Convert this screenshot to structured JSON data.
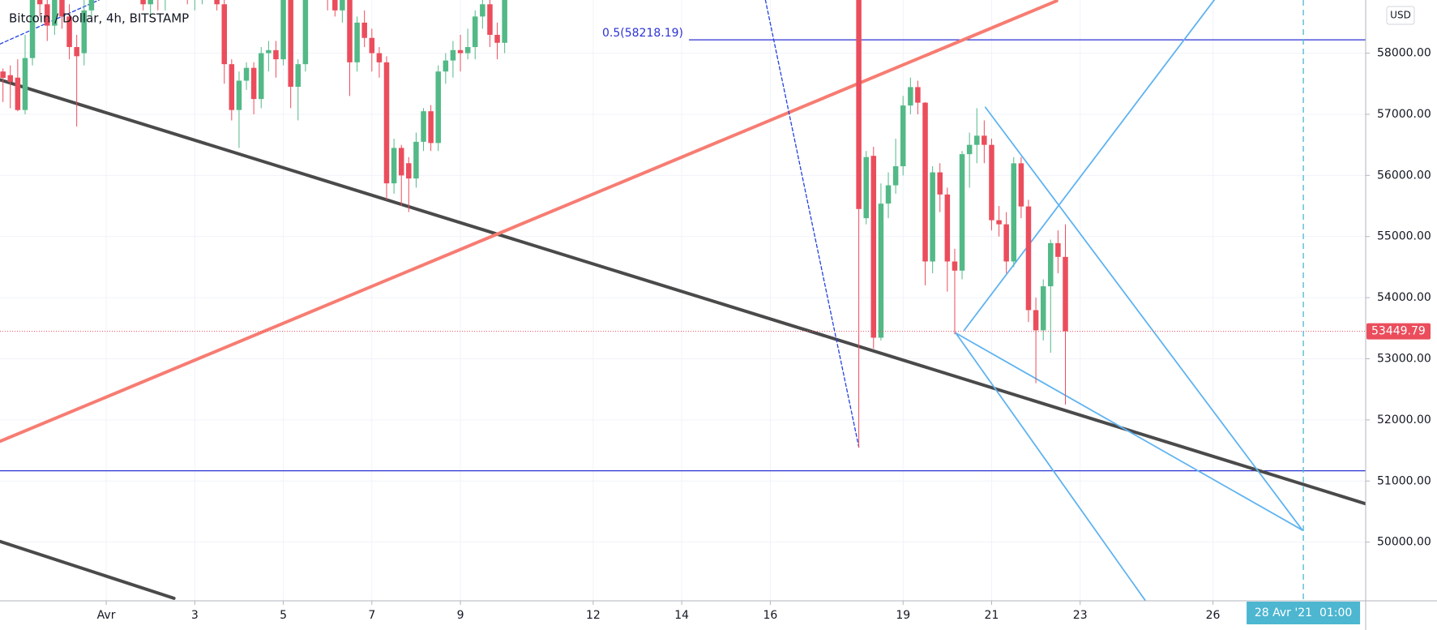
{
  "chart_data": {
    "type": "candlestick",
    "title": "Bitcoin / Dollar, 4h, BITSTAMP",
    "currency": "USD",
    "up_color": "#53b987",
    "down_color": "#eb4d5c",
    "x": [
      -1.333,
      -1.167,
      -1,
      -0.833,
      -0.667,
      -0.5,
      -0.333,
      -0.167,
      0,
      0.167,
      0.333,
      0.5,
      0.667,
      0.833,
      1,
      1.167,
      1.333,
      1.5,
      1.667,
      1.833,
      2,
      2.167,
      2.333,
      2.5,
      2.667,
      2.833,
      3,
      3.167,
      3.333,
      3.5,
      3.667,
      3.833,
      4,
      4.167,
      4.333,
      4.5,
      4.667,
      4.833,
      5,
      5.167,
      5.333,
      5.5,
      5.667,
      5.833,
      6,
      6.167,
      6.333,
      6.5,
      6.667,
      6.833,
      7,
      7.167,
      7.333,
      7.5,
      7.667,
      7.833,
      8,
      8.167,
      8.333,
      8.5,
      8.667,
      8.833,
      9,
      9.167,
      9.333,
      9.5,
      9.667,
      9.833,
      10,
      18,
      18.167,
      18.333,
      18.5,
      18.667,
      18.833,
      19,
      19.167,
      19.333,
      19.5,
      19.667,
      19.833,
      20,
      20.167,
      20.333,
      20.5,
      20.667,
      20.833,
      21,
      21.167,
      21.333,
      21.5,
      21.667,
      21.833,
      22,
      22.167,
      22.333,
      22.5,
      22.667
    ],
    "open": [
      57700,
      57640,
      57600,
      57070,
      57920,
      59200,
      58800,
      58450,
      58900,
      58600,
      58100,
      58000,
      58700,
      59300,
      59100,
      59500,
      59300,
      59400,
      59700,
      59400,
      58800,
      59000,
      58900,
      59100,
      59200,
      59300,
      58900,
      59000,
      59200,
      59000,
      58800,
      57820,
      57070,
      57550,
      57760,
      57250,
      58000,
      58050,
      57900,
      58950,
      57450,
      57820,
      59200,
      59600,
      59400,
      58900,
      58700,
      58900,
      57850,
      58500,
      58250,
      58000,
      57850,
      55870,
      56450,
      56200,
      55950,
      56550,
      57050,
      56530,
      57700,
      57880,
      58050,
      58000,
      58100,
      58600,
      58800,
      58300,
      58170,
      59500,
      55300,
      56320,
      53345,
      55540,
      55838,
      56150,
      57144,
      57445,
      57190,
      54592,
      56050,
      55688,
      54592,
      54442,
      56348,
      56500,
      56650,
      56500,
      55267,
      55200,
      54592,
      56198,
      55492,
      53796,
      53466,
      54186,
      54892,
      54667
    ],
    "high": [
      57750,
      57800,
      57900,
      58300,
      59400,
      59500,
      59000,
      59200,
      59100,
      58800,
      58300,
      59000,
      59600,
      59500,
      59700,
      59800,
      59600,
      59900,
      60000,
      59500,
      59200,
      59300,
      59200,
      59400,
      59500,
      59400,
      59100,
      59300,
      59400,
      59200,
      58900,
      57900,
      57700,
      57850,
      57850,
      58100,
      58200,
      58200,
      59100,
      59200,
      57900,
      59300,
      59700,
      59800,
      59500,
      59000,
      59000,
      59000,
      58600,
      58700,
      58400,
      58100,
      57950,
      56600,
      56500,
      56300,
      56700,
      57100,
      57150,
      57800,
      58000,
      58200,
      58300,
      58400,
      58700,
      59100,
      59000,
      58500,
      59300,
      60000,
      56400,
      56469,
      55868,
      56050,
      56600,
      57300,
      57600,
      57550,
      57200,
      56150,
      56200,
      55800,
      54800,
      56400,
      56700,
      57100,
      56900,
      56600,
      55500,
      55400,
      56300,
      56300,
      55600,
      54000,
      54300,
      54950,
      55100,
      55200
    ],
    "low": [
      57200,
      57100,
      57050,
      57000,
      57800,
      58600,
      58200,
      58300,
      58400,
      57900,
      56800,
      57800,
      58600,
      58900,
      58950,
      59200,
      59000,
      59200,
      59300,
      58700,
      58600,
      58700,
      58700,
      58900,
      59000,
      58800,
      58700,
      58800,
      58900,
      58700,
      57500,
      56900,
      56450,
      57400,
      57000,
      57100,
      57700,
      57600,
      57800,
      57100,
      56900,
      57700,
      59000,
      59300,
      58700,
      58600,
      58500,
      57300,
      57700,
      58100,
      57700,
      57600,
      55600,
      55700,
      55500,
      55400,
      55800,
      56400,
      56400,
      56400,
      57500,
      57600,
      57700,
      57900,
      57900,
      58400,
      58100,
      57900,
      58000,
      51544,
      55200,
      53165,
      53300,
      55300,
      55700,
      56000,
      57000,
      57000,
      54200,
      54400,
      55400,
      54100,
      53400,
      54300,
      55800,
      56200,
      56200,
      55100,
      55000,
      54400,
      54500,
      55300,
      53600,
      52600,
      53300,
      53100,
      54400,
      52250
    ],
    "close": [
      57595,
      57530,
      57070,
      57920,
      59200,
      58800,
      58450,
      58900,
      58600,
      58100,
      57950,
      58700,
      59300,
      59100,
      59500,
      59300,
      59400,
      59700,
      59400,
      58800,
      59000,
      58900,
      59100,
      59200,
      59300,
      58900,
      59000,
      59200,
      59000,
      58800,
      57820,
      57070,
      57550,
      57760,
      57250,
      58000,
      58050,
      57900,
      58950,
      57450,
      57820,
      59200,
      59600,
      59400,
      58900,
      58700,
      58900,
      57850,
      58500,
      58250,
      58000,
      57850,
      55870,
      56450,
      56000,
      55950,
      56550,
      57050,
      56530,
      57700,
      57880,
      58050,
      58000,
      58100,
      58600,
      58800,
      58300,
      58170,
      59000,
      55450,
      56300,
      53345,
      55538,
      55838,
      56150,
      57144,
      57445,
      57190,
      54592,
      56050,
      55688,
      54592,
      54442,
      56348,
      56500,
      56650,
      56500,
      55267,
      55200,
      54592,
      56198,
      55492,
      53796,
      53466,
      54186,
      54892,
      54667,
      53449.79
    ],
    "xlim": [
      -1.4,
      29.45
    ],
    "xticks": [
      {
        "value": 1,
        "label": "Avr"
      },
      3,
      5,
      7,
      9,
      12,
      14,
      16,
      19,
      21,
      23,
      26
    ],
    "ylim": [
      49040,
      58870
    ],
    "yticks": [
      {
        "value": 50000,
        "label": "50000.00"
      },
      {
        "value": 51000,
        "label": "51000.00"
      },
      {
        "value": 52000,
        "label": "52000.00"
      },
      {
        "value": 53000,
        "label": "53000.00"
      },
      {
        "value": 54000,
        "label": "54000.00"
      },
      {
        "value": 55000,
        "label": "55000.00"
      },
      {
        "value": 56000,
        "label": "56000.00"
      },
      {
        "value": 57000,
        "label": "57000.00"
      },
      {
        "value": 58000,
        "label": "58000.00"
      }
    ],
    "grid": true,
    "fib_level": {
      "label": "0.5(58218.19)",
      "value": 58218.19,
      "color": "#2b32d3"
    },
    "hlines": [
      {
        "value": 51168,
        "color": "#2b32d3"
      }
    ],
    "trend_lines": [
      {
        "color": "#4a4a4a",
        "width": 4,
        "x": [
          -1.4,
          29.45
        ],
        "y": [
          57565,
          50628
        ]
      },
      {
        "color": "#4a4a4a",
        "width": 4,
        "x": [
          -1.4,
          2.53
        ],
        "y": [
          50012,
          49081
        ]
      },
      {
        "color": "#f77c72",
        "width": 4,
        "x": [
          -1.4,
          22.47
        ],
        "y": [
          51649,
          58856
        ]
      },
      {
        "color": "#2040e0",
        "width": 1.3,
        "dash": true,
        "x": [
          15.89,
          18.0
        ],
        "y": [
          58871,
          51558
        ]
      },
      {
        "color": "#2040e0",
        "width": 1.3,
        "dash": true,
        "x": [
          -1.4,
          0.84
        ],
        "y": [
          58150,
          58871
        ]
      },
      {
        "color": "#5fb3f0",
        "width": 1.8,
        "x": [
          20.86,
          28.02
        ],
        "y": [
          57114,
          50197
        ]
      },
      {
        "color": "#5fb3f0",
        "width": 1.8,
        "x": [
          20.19,
          28.02
        ],
        "y": [
          53421,
          50197
        ]
      },
      {
        "color": "#5fb3f0",
        "width": 1.8,
        "x": [
          20.19,
          24.48
        ],
        "y": [
          53421,
          49036
        ]
      },
      {
        "color": "#5fb3f0",
        "width": 1.8,
        "x": [
          20.38,
          26.03
        ],
        "y": [
          53466,
          58871
        ]
      }
    ],
    "cursor": {
      "value": 28.042,
      "label": "28 Avr '21  01:00",
      "color": "#4db6d0"
    }
  }
}
